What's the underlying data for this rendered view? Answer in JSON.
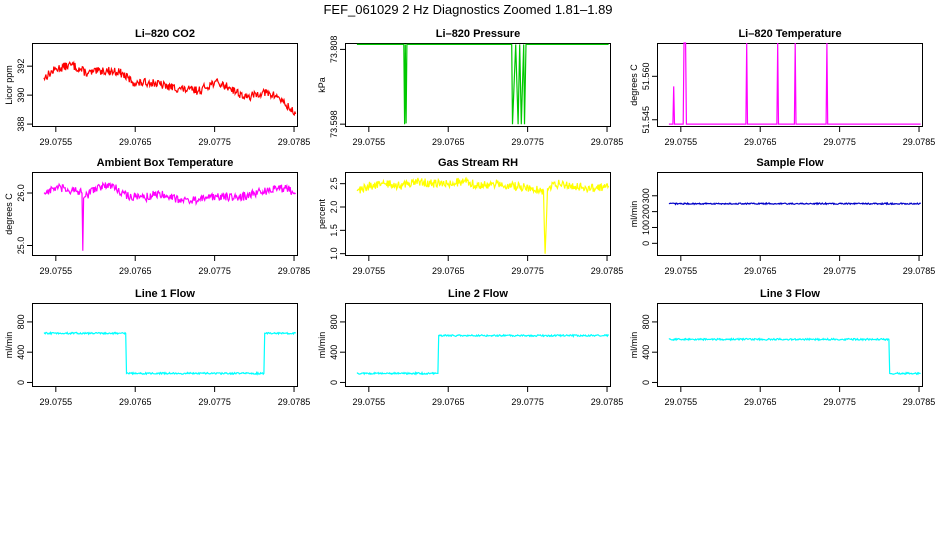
{
  "title": "FEF_061029  2 Hz Diagnostics Zoomed 1.81–1.89",
  "x_ticks": [
    "29.0755",
    "29.0765",
    "29.0775",
    "29.0785"
  ],
  "chart_data": [
    {
      "type": "line",
      "title": "Li–820 CO2",
      "ylabel": "Licor ppm",
      "color": "#ff0000",
      "xlim": [
        29.0752,
        29.07855
      ],
      "ylim": [
        387.8,
        393.6
      ],
      "yticks": [
        "388",
        "390",
        "392"
      ],
      "ytick_values": [
        388,
        390,
        392
      ],
      "x": [
        29.07535,
        29.0755,
        29.0757,
        29.0759,
        29.0761,
        29.0763,
        29.0765,
        29.0767,
        29.0769,
        29.0771,
        29.0773,
        29.0775,
        29.0777,
        29.0779,
        29.0781,
        29.0783,
        29.0784,
        29.07852
      ],
      "y": [
        391.2,
        391.8,
        392.1,
        391.5,
        391.7,
        391.6,
        390.8,
        390.9,
        390.6,
        390.4,
        390.3,
        390.9,
        390.5,
        389.8,
        390.2,
        389.9,
        389.3,
        388.7
      ]
    },
    {
      "type": "line",
      "title": "Li–820 Pressure",
      "ylabel": "kPa",
      "color": "#00c800",
      "xlim": [
        29.0752,
        29.07855
      ],
      "ylim": [
        73.59,
        73.826
      ],
      "yticks": [
        "73.598",
        "73.808"
      ],
      "ytick_values": [
        73.598,
        73.808
      ],
      "x": [
        29.07535,
        29.07594,
        29.07595,
        29.07596,
        29.07597,
        29.07598,
        29.07599,
        29.0773,
        29.07731,
        29.07735,
        29.07738,
        29.0774,
        29.07742,
        29.07745,
        29.07746,
        29.07748,
        29.0775,
        29.07852
      ],
      "y": [
        73.822,
        73.822,
        73.598,
        73.822,
        73.6,
        73.822,
        73.822,
        73.822,
        73.598,
        73.822,
        73.598,
        73.822,
        73.598,
        73.822,
        73.598,
        73.822,
        73.822,
        73.822
      ]
    },
    {
      "type": "line",
      "title": "Li–820 Temperature",
      "ylabel": "degrees C",
      "color": "#ff00ff",
      "xlim": [
        29.0752,
        29.07855
      ],
      "ylim": [
        51.5425,
        51.5715
      ],
      "yticks": [
        "51.545",
        "51.560"
      ],
      "ytick_values": [
        51.545,
        51.56
      ],
      "x": [
        29.07535,
        29.0754,
        29.07541,
        29.07542,
        29.07553,
        29.07554,
        29.07556,
        29.07557,
        29.07632,
        29.07633,
        29.07634,
        29.07671,
        29.07672,
        29.07673,
        29.07693,
        29.07694,
        29.07695,
        29.07733,
        29.07734,
        29.07735,
        29.07852
      ],
      "y": [
        51.5435,
        51.5435,
        51.5565,
        51.5435,
        51.5435,
        51.5715,
        51.5715,
        51.5435,
        51.5435,
        51.5715,
        51.5435,
        51.5435,
        51.5715,
        51.5435,
        51.5435,
        51.5715,
        51.5435,
        51.5435,
        51.5715,
        51.5435,
        51.5435
      ]
    },
    {
      "type": "line",
      "title": "Ambient Box Temperature",
      "ylabel": "degrees C",
      "color": "#ff00ff",
      "xlim": [
        29.0752,
        29.07855
      ],
      "ylim": [
        24.8,
        26.4
      ],
      "yticks": [
        "25.0",
        "26.0"
      ],
      "ytick_values": [
        25.0,
        26.0
      ],
      "x": [
        29.07535,
        29.0755,
        29.0757,
        29.07583,
        29.07584,
        29.07585,
        29.076,
        29.0762,
        29.0764,
        29.0766,
        29.0768,
        29.077,
        29.0772,
        29.0774,
        29.0776,
        29.0778,
        29.078,
        29.0782,
        29.0784,
        29.07852
      ],
      "y": [
        26.0,
        26.1,
        26.05,
        26.0,
        24.9,
        25.9,
        26.1,
        26.15,
        25.95,
        25.9,
        26.0,
        25.9,
        25.85,
        25.9,
        25.95,
        25.9,
        26.0,
        26.05,
        26.1,
        26.0
      ]
    },
    {
      "type": "line",
      "title": "Gas Stream RH",
      "ylabel": "percent",
      "color": "#ffff00",
      "xlim": [
        29.0752,
        29.07855
      ],
      "ylim": [
        0.95,
        2.75
      ],
      "yticks": [
        "1.0",
        "1.5",
        "2.0",
        "2.5"
      ],
      "ytick_values": [
        1.0,
        1.5,
        2.0,
        2.5
      ],
      "x": [
        29.07535,
        29.0755,
        29.0757,
        29.0759,
        29.0761,
        29.0763,
        29.0765,
        29.0767,
        29.0769,
        29.0771,
        29.0773,
        29.07755,
        29.0777,
        29.07772,
        29.07775,
        29.0779,
        29.0781,
        29.0783,
        29.07852
      ],
      "y": [
        2.35,
        2.45,
        2.5,
        2.45,
        2.55,
        2.5,
        2.5,
        2.55,
        2.45,
        2.5,
        2.45,
        2.4,
        2.35,
        1.0,
        2.4,
        2.5,
        2.45,
        2.4,
        2.45
      ]
    },
    {
      "type": "line",
      "title": "Sample Flow",
      "ylabel": "ml/min",
      "color": "#0000c8",
      "xlim": [
        29.0752,
        29.07855
      ],
      "ylim": [
        -80,
        450
      ],
      "yticks": [
        "0",
        "100",
        "200",
        "300"
      ],
      "ytick_values": [
        0,
        100,
        200,
        300
      ],
      "x": [
        29.07535,
        29.07852
      ],
      "y": [
        250,
        250
      ]
    },
    {
      "type": "line",
      "title": "Line 1 Flow",
      "ylabel": "ml/min",
      "color": "#00ffff",
      "xlim": [
        29.0752,
        29.07855
      ],
      "ylim": [
        -60,
        1050
      ],
      "yticks": [
        "0",
        "400",
        "800"
      ],
      "ytick_values": [
        0,
        400,
        800
      ],
      "x": [
        29.07535,
        29.07638,
        29.07639,
        29.07812,
        29.07813,
        29.07852
      ],
      "y": [
        650,
        650,
        120,
        120,
        650,
        650
      ]
    },
    {
      "type": "line",
      "title": "Line 2 Flow",
      "ylabel": "ml/min",
      "color": "#00ffff",
      "xlim": [
        29.0752,
        29.07855
      ],
      "ylim": [
        -60,
        1050
      ],
      "yticks": [
        "0",
        "400",
        "800"
      ],
      "ytick_values": [
        0,
        400,
        800
      ],
      "x": [
        29.07535,
        29.07637,
        29.07638,
        29.07852
      ],
      "y": [
        120,
        120,
        620,
        620
      ]
    },
    {
      "type": "line",
      "title": "Line 3 Flow",
      "ylabel": "ml/min",
      "color": "#00ffff",
      "xlim": [
        29.0752,
        29.07855
      ],
      "ylim": [
        -60,
        1050
      ],
      "yticks": [
        "0",
        "400",
        "800"
      ],
      "ytick_values": [
        0,
        400,
        800
      ],
      "x": [
        29.07535,
        29.07812,
        29.07813,
        29.07852
      ],
      "y": [
        570,
        570,
        120,
        120
      ]
    }
  ]
}
